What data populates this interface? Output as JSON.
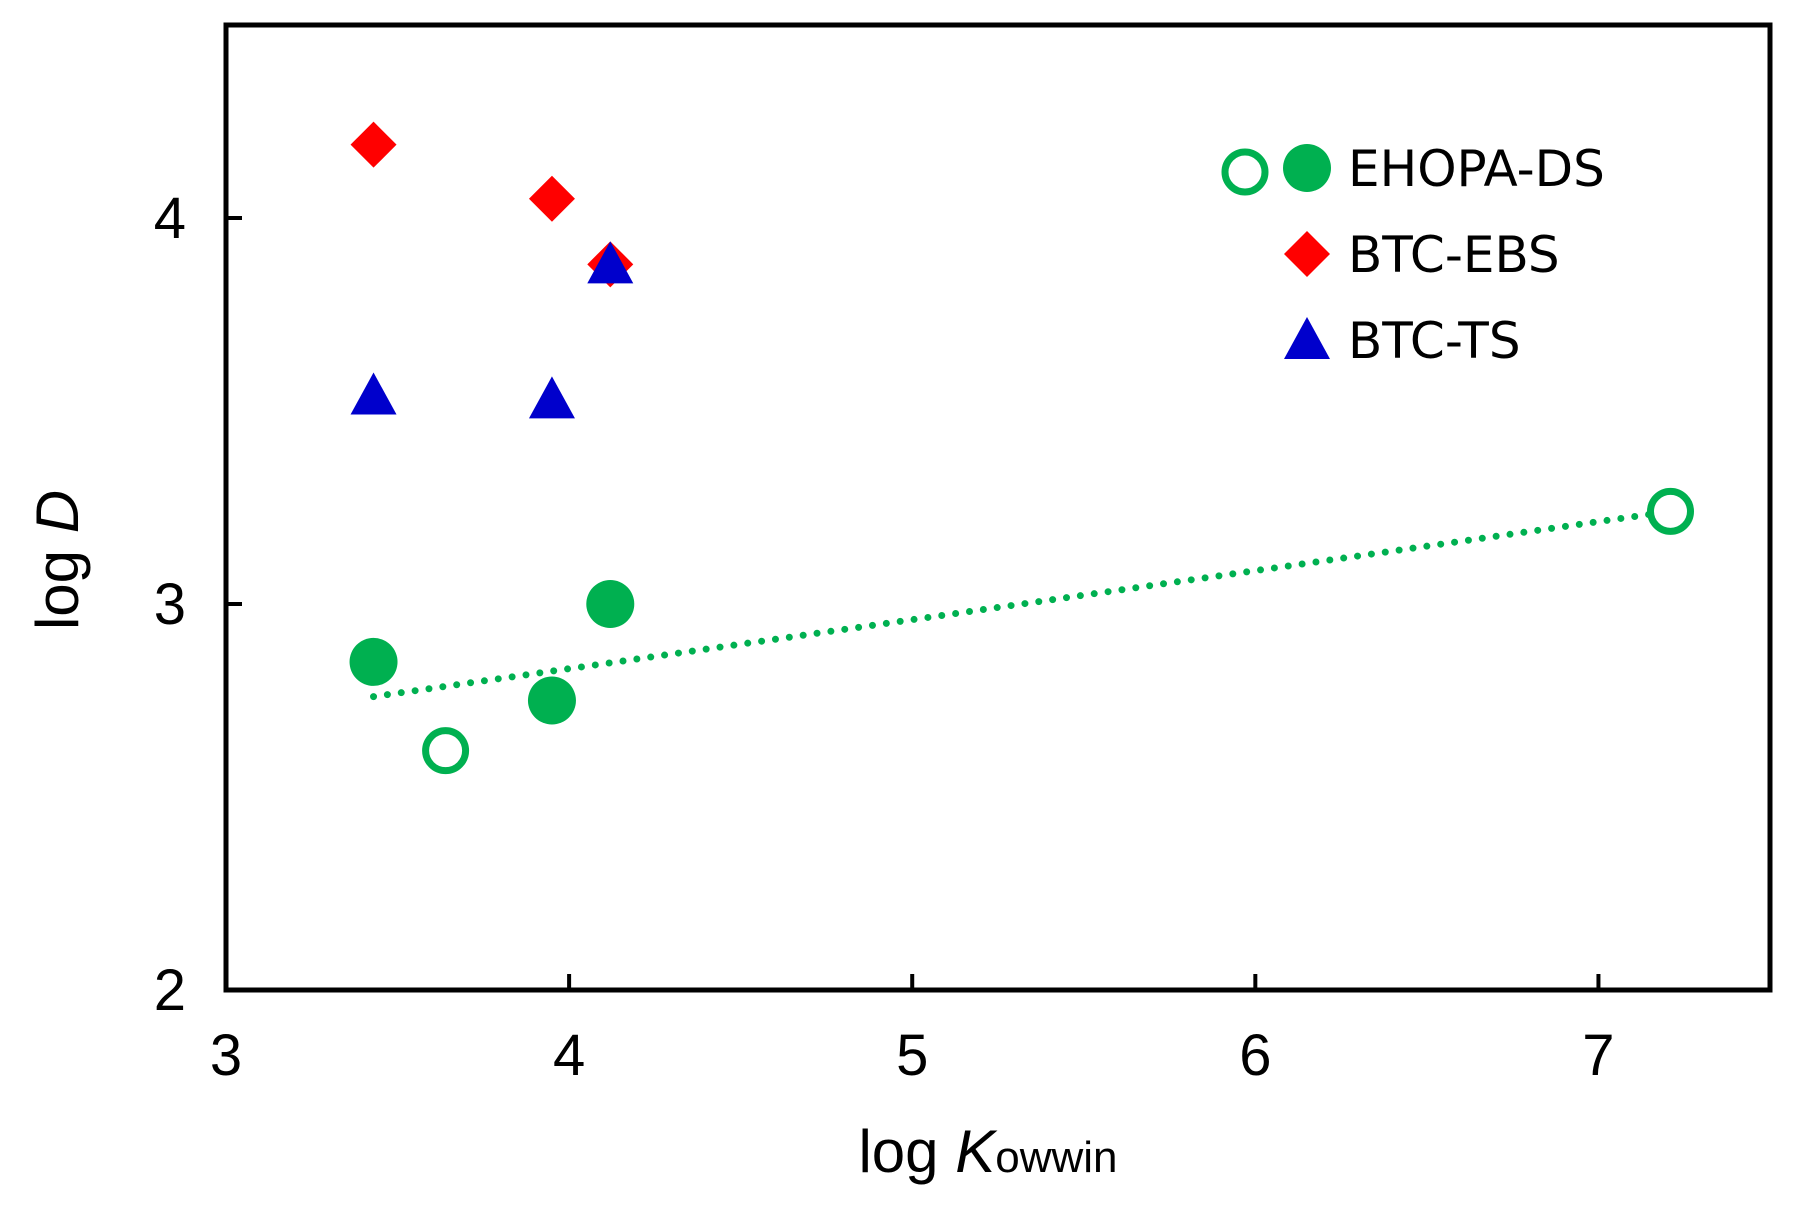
{
  "chart_data": {
    "type": "scatter",
    "xlabel": {
      "prefix": "log ",
      "var": "K",
      "sub": "owwin"
    },
    "ylabel": {
      "prefix": "log ",
      "var": "D"
    },
    "xlim": [
      3,
      7.5
    ],
    "ylim": [
      2,
      4.5
    ],
    "xticks": [
      3,
      4,
      5,
      6,
      7
    ],
    "yticks": [
      2,
      3,
      4
    ],
    "series": [
      {
        "name": "EHOPA-DS",
        "marker": "circle",
        "color": "#00b050",
        "points": [
          {
            "x": 3.43,
            "y": 2.85,
            "filled": true
          },
          {
            "x": 3.95,
            "y": 2.75,
            "filled": true
          },
          {
            "x": 4.12,
            "y": 3.0,
            "filled": true
          },
          {
            "x": 3.64,
            "y": 2.62,
            "filled": false
          },
          {
            "x": 7.21,
            "y": 3.24,
            "filled": false
          }
        ]
      },
      {
        "name": "BTC-EBS",
        "marker": "diamond",
        "color": "#ff0000",
        "points": [
          {
            "x": 3.43,
            "y": 4.19
          },
          {
            "x": 3.95,
            "y": 4.05
          },
          {
            "x": 4.12,
            "y": 3.88
          }
        ]
      },
      {
        "name": "BTC-TS",
        "marker": "triangle",
        "color": "#0000cc",
        "points": [
          {
            "x": 3.43,
            "y": 3.54
          },
          {
            "x": 3.95,
            "y": 3.53
          },
          {
            "x": 4.12,
            "y": 3.88
          }
        ]
      }
    ],
    "trendline": {
      "series": "EHOPA-DS",
      "style": "dotted",
      "color": "#00b050",
      "from": {
        "x": 3.43,
        "y": 2.76
      },
      "to": {
        "x": 7.21,
        "y": 3.24
      }
    },
    "legend": {
      "position": "top-right",
      "entries": [
        "EHOPA-DS",
        "BTC-EBS",
        "BTC-TS"
      ]
    },
    "grid": false
  }
}
